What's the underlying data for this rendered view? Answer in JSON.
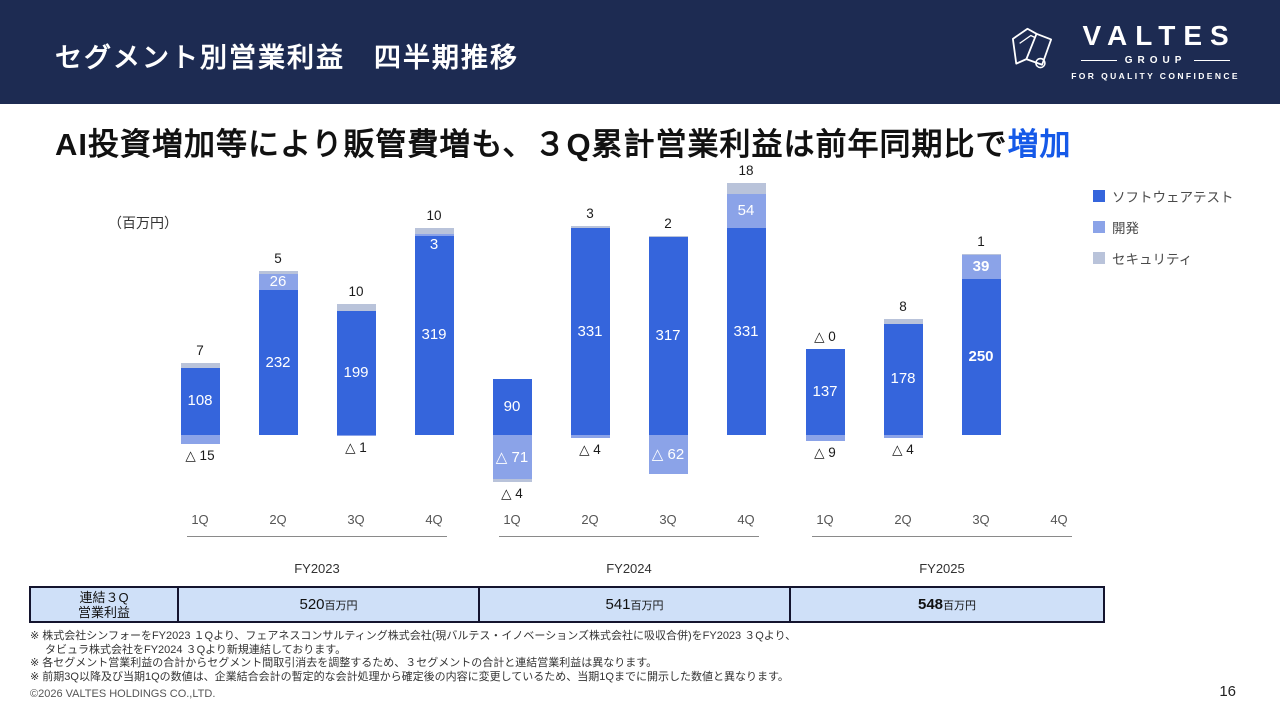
{
  "colors": {
    "header_bg": "#1d2b52",
    "accent": "#1559e8",
    "table_bg": "#cfe0f8"
  },
  "header": {
    "title": "セグメント別営業利益　四半期推移",
    "logo": {
      "brand": "VALTES",
      "group": "GROUP",
      "tagline": "FOR QUALITY CONFIDENCE"
    }
  },
  "headline": {
    "main": "AI投資増加等により販管費増も、３Q累計営業利益は前年同期比で",
    "accent": "増加"
  },
  "chart_data": {
    "type": "bar",
    "stacked": true,
    "unit_label": "（百万円）",
    "value_unit": "百万円",
    "legend_position": "right",
    "series": [
      {
        "key": "software_test",
        "name": "ソフトウェアテスト",
        "color": "#3565dc"
      },
      {
        "key": "dev",
        "name": "開発",
        "color": "#8ba3e8"
      },
      {
        "key": "security",
        "name": "セキュリティ",
        "color": "#b9c3da"
      }
    ],
    "groups": [
      {
        "label": "FY2023",
        "quarters": [
          {
            "q": "1Q",
            "software_test": 108,
            "dev": -15,
            "security": 7,
            "above": "7",
            "below": "△ 15",
            "sw_label": "108"
          },
          {
            "q": "2Q",
            "software_test": 232,
            "dev": 26,
            "security": 5,
            "above": "5",
            "dev_label": "26",
            "sw_label": "232"
          },
          {
            "q": "3Q",
            "software_test": 199,
            "dev": -1,
            "security": 10,
            "above": "10",
            "below": "△ 1",
            "sw_label": "199"
          },
          {
            "q": "4Q",
            "software_test": 319,
            "dev": 3,
            "security": 10,
            "above": "10",
            "dev_label": "3",
            "sw_label": "319"
          }
        ]
      },
      {
        "label": "FY2024",
        "quarters": [
          {
            "q": "1Q",
            "software_test": 90,
            "dev": -71,
            "security": -4,
            "below": "△ 4",
            "dev_label": "△ 71",
            "sw_label": "90"
          },
          {
            "q": "2Q",
            "software_test": 331,
            "dev": -4,
            "security": 3,
            "above": "3",
            "below": "△ 4",
            "sw_label": "331"
          },
          {
            "q": "3Q",
            "software_test": 317,
            "dev": -62,
            "security": 2,
            "above": "2",
            "dev_label": "△ 62",
            "sw_label": "317"
          },
          {
            "q": "4Q",
            "software_test": 331,
            "dev": 54,
            "security": 18,
            "above": "18",
            "dev_label": "54",
            "sw_label": "331"
          }
        ]
      },
      {
        "label": "FY2025",
        "quarters": [
          {
            "q": "1Q",
            "software_test": 137,
            "dev": -9,
            "security": 0,
            "above": "△ 0",
            "below": "△ 9",
            "sw_label": "137"
          },
          {
            "q": "2Q",
            "software_test": 178,
            "dev": -4,
            "security": 8,
            "above": "8",
            "below": "△ 4",
            "sw_label": "178"
          },
          {
            "q": "3Q",
            "software_test": 250,
            "dev": 39,
            "security": 1,
            "above": "1",
            "dev_label": "39",
            "sw_label": "250",
            "bold_labels": true
          },
          {
            "q": "4Q"
          }
        ]
      }
    ]
  },
  "table": {
    "row_header": [
      "連結３Q",
      "営業利益"
    ],
    "values": [
      {
        "number": "520",
        "unit": "百万円",
        "bold": false
      },
      {
        "number": "541",
        "unit": "百万円",
        "bold": false
      },
      {
        "number": "548",
        "unit": "百万円",
        "bold": true
      }
    ]
  },
  "footnotes": [
    {
      "text": "※ 株式会社シンフォーをFY2023 １Qより、フェアネスコンサルティング株式会社(現バルテス・イノベーションズ株式会社に吸収合併)をFY2023 ３Qより、",
      "indent": false
    },
    {
      "text": "タビュラ株式会社をFY2024 ３Qより新規連結しております。",
      "indent": true
    },
    {
      "text": "※ 各セグメント営業利益の合計からセグメント間取引消去を調整するため、３セグメントの合計と連結営業利益は異なります。",
      "indent": false
    },
    {
      "text": "※ 前期3Q以降及び当期1Qの数値は、企業結合会計の暫定的な会計処理から確定後の内容に変更しているため、当期1Qまでに開示した数値と異なります。",
      "indent": false
    }
  ],
  "footer": {
    "copyright": "©2026 VALTES HOLDINGS CO.,LTD.",
    "page_number": "16"
  }
}
